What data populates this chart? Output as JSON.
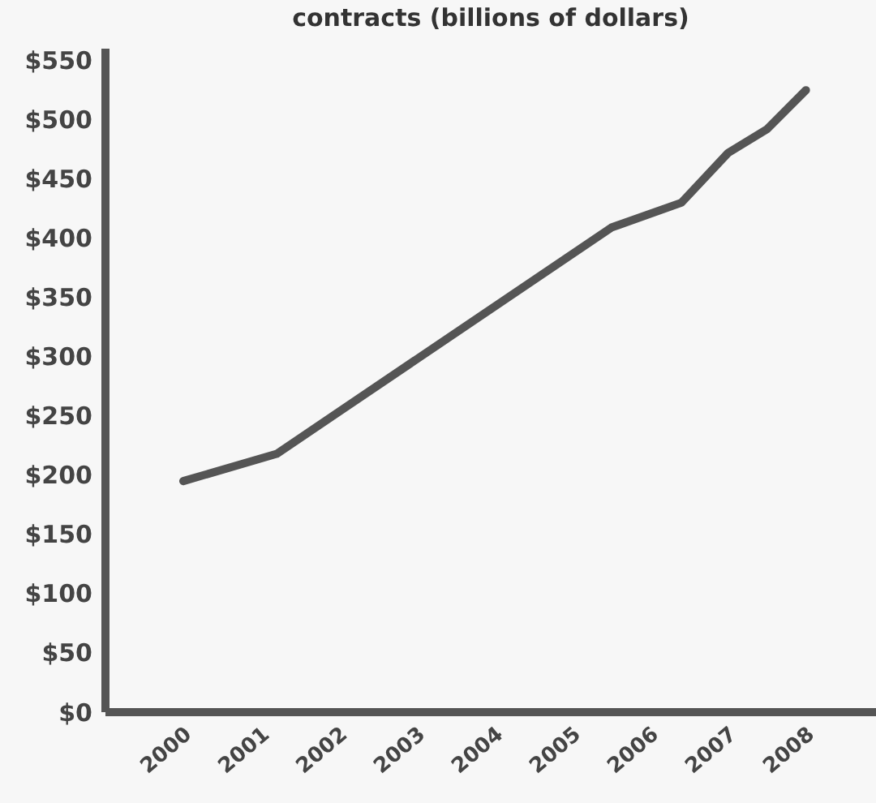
{
  "chart_data": {
    "type": "line",
    "title": "contracts (billions of dollars)",
    "x": [
      2000,
      2001.2,
      2005.5,
      2006.4,
      2007,
      2007.5,
      2008
    ],
    "values": [
      195,
      218,
      409,
      430,
      472,
      492,
      525
    ],
    "color": "#555555",
    "xlim": [
      1999,
      2008.9
    ],
    "xticks": [
      2000,
      2001,
      2002,
      2003,
      2004,
      2005,
      2006,
      2007,
      2008
    ],
    "ylim": [
      0,
      560
    ],
    "yticks": [
      {
        "value": 0,
        "label": "$0"
      },
      {
        "value": 50,
        "label": "$50"
      },
      {
        "value": 100,
        "label": "$100"
      },
      {
        "value": 150,
        "label": "$150"
      },
      {
        "value": 200,
        "label": "$200"
      },
      {
        "value": 250,
        "label": "$250"
      },
      {
        "value": 300,
        "label": "$300"
      },
      {
        "value": 350,
        "label": "$350"
      },
      {
        "value": 400,
        "label": "$400"
      },
      {
        "value": 450,
        "label": "$450"
      },
      {
        "value": 500,
        "label": "$500"
      },
      {
        "value": 550,
        "label": "$550"
      }
    ],
    "grid": false
  }
}
